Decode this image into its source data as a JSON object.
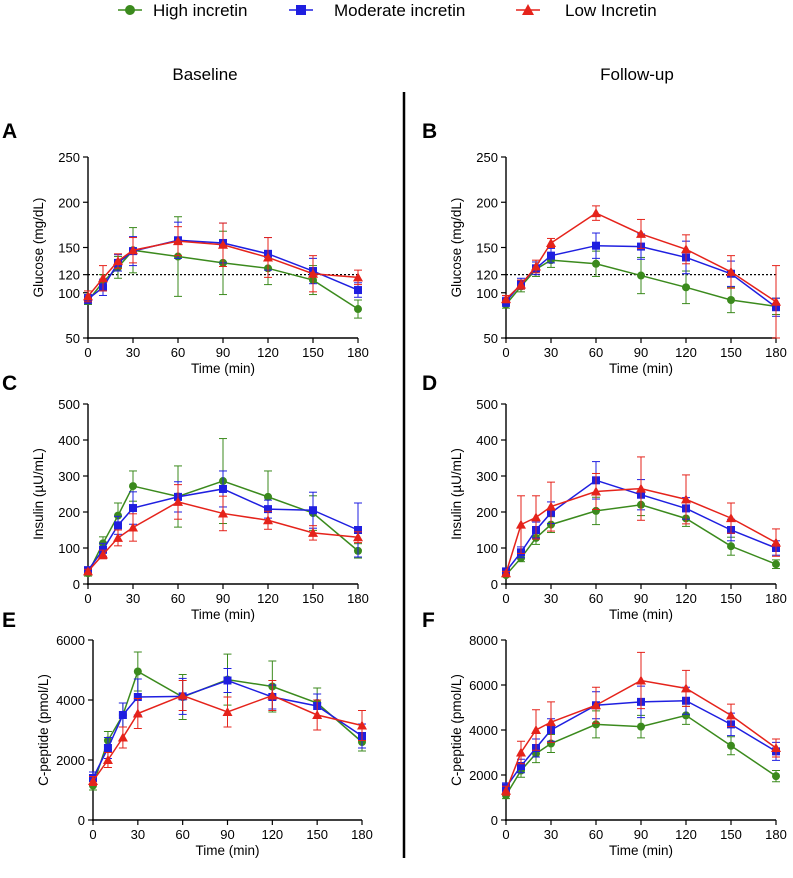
{
  "legend": [
    {
      "name": "High incretin",
      "color": "#3b8a1d",
      "marker": "circle"
    },
    {
      "name": "Moderate incretin",
      "color": "#1f1fe0",
      "marker": "square"
    },
    {
      "name": "Low Incretin",
      "color": "#e5231b",
      "marker": "triangle"
    }
  ],
  "column_titles": {
    "left": "Baseline",
    "right": "Follow-up"
  },
  "chart_data": [
    {
      "panel": "A",
      "type": "line",
      "title": "",
      "xlabel": "Time (min)",
      "ylabel": "Glucose (mg/dL)",
      "xlim": [
        0,
        180
      ],
      "ylim": [
        50,
        250
      ],
      "xticks": [
        0,
        30,
        60,
        90,
        120,
        150,
        180
      ],
      "yticks": [
        50,
        100,
        120,
        150,
        200,
        250
      ],
      "ref_line": 120,
      "x": [
        0,
        10,
        20,
        30,
        60,
        90,
        120,
        150,
        180
      ],
      "series": [
        {
          "name": "High incretin",
          "values": [
            91,
            112,
            128,
            147,
            140,
            133,
            127,
            114,
            82
          ],
          "errors": [
            4,
            8,
            12,
            25,
            44,
            35,
            18,
            16,
            10
          ]
        },
        {
          "name": "Moderate incretin",
          "values": [
            93,
            106,
            133,
            146,
            158,
            155,
            143,
            124,
            103
          ],
          "errors": [
            5,
            9,
            9,
            16,
            20,
            22,
            18,
            14,
            8
          ]
        },
        {
          "name": "Low Incretin",
          "values": [
            96,
            116,
            135,
            147,
            157,
            153,
            139,
            121,
            117
          ],
          "errors": [
            6,
            14,
            8,
            14,
            16,
            24,
            22,
            20,
            8
          ]
        }
      ]
    },
    {
      "panel": "B",
      "type": "line",
      "title": "",
      "xlabel": "Time (min)",
      "ylabel": "Glucose (mg/dL)",
      "xlim": [
        0,
        180
      ],
      "ylim": [
        50,
        250
      ],
      "xticks": [
        0,
        30,
        60,
        90,
        120,
        150,
        180
      ],
      "yticks": [
        50,
        100,
        120,
        150,
        200,
        250
      ],
      "ref_line": 120,
      "x": [
        0,
        10,
        20,
        30,
        60,
        90,
        120,
        150,
        180
      ],
      "series": [
        {
          "name": "High incretin",
          "values": [
            87,
            107,
            126,
            136,
            132,
            119,
            106,
            92,
            85
          ],
          "errors": [
            4,
            6,
            8,
            8,
            14,
            20,
            18,
            14,
            9
          ]
        },
        {
          "name": "Moderate incretin",
          "values": [
            90,
            110,
            127,
            141,
            152,
            151,
            139,
            121,
            84
          ],
          "errors": [
            5,
            6,
            7,
            8,
            14,
            14,
            18,
            14,
            10
          ]
        },
        {
          "name": "Low Incretin",
          "values": [
            93,
            109,
            129,
            155,
            188,
            165,
            148,
            123,
            90
          ],
          "errors": [
            4,
            5,
            7,
            5,
            8,
            16,
            16,
            18,
            40
          ]
        }
      ]
    },
    {
      "panel": "C",
      "type": "line",
      "title": "",
      "xlabel": "Time (min)",
      "ylabel": "Insulin (µU/mL)",
      "xlim": [
        0,
        180
      ],
      "ylim": [
        0,
        500
      ],
      "xticks": [
        0,
        30,
        60,
        90,
        120,
        150,
        180
      ],
      "yticks": [
        0,
        100,
        200,
        300,
        400,
        500
      ],
      "x": [
        0,
        10,
        20,
        30,
        60,
        90,
        120,
        150,
        180
      ],
      "series": [
        {
          "name": "High incretin",
          "values": [
            30,
            113,
            190,
            272,
            243,
            286,
            242,
            197,
            92
          ],
          "errors": [
            8,
            18,
            35,
            42,
            85,
            118,
            72,
            48,
            20
          ]
        },
        {
          "name": "Moderate incretin",
          "values": [
            38,
            95,
            163,
            211,
            242,
            264,
            208,
            205,
            150
          ],
          "errors": [
            10,
            18,
            25,
            45,
            42,
            50,
            25,
            50,
            75
          ]
        },
        {
          "name": "Low Incretin",
          "values": [
            35,
            82,
            128,
            157,
            228,
            196,
            177,
            142,
            130
          ],
          "errors": [
            6,
            12,
            22,
            38,
            48,
            48,
            25,
            20,
            15
          ]
        }
      ]
    },
    {
      "panel": "D",
      "type": "line",
      "title": "",
      "xlabel": "Time (min)",
      "ylabel": "Insulin (µU/mL)",
      "xlim": [
        0,
        180
      ],
      "ylim": [
        0,
        500
      ],
      "xticks": [
        0,
        30,
        60,
        90,
        120,
        150,
        180
      ],
      "yticks": [
        0,
        100,
        200,
        300,
        400,
        500
      ],
      "x": [
        0,
        10,
        20,
        30,
        60,
        90,
        120,
        150,
        180
      ],
      "series": [
        {
          "name": "High incretin",
          "values": [
            25,
            72,
            128,
            165,
            203,
            220,
            182,
            105,
            55
          ],
          "errors": [
            5,
            10,
            18,
            22,
            38,
            30,
            22,
            25,
            12
          ]
        },
        {
          "name": "Moderate incretin",
          "values": [
            35,
            88,
            150,
            198,
            288,
            248,
            210,
            150,
            100
          ],
          "errors": [
            8,
            15,
            22,
            30,
            52,
            42,
            30,
            30,
            20
          ]
        },
        {
          "name": "Low Incretin",
          "values": [
            30,
            165,
            185,
            215,
            257,
            265,
            235,
            183,
            115
          ],
          "errors": [
            5,
            80,
            60,
            68,
            50,
            88,
            68,
            42,
            38
          ]
        }
      ]
    },
    {
      "panel": "E",
      "type": "line",
      "title": "",
      "xlabel": "Time (min)",
      "ylabel": "C-peptide (pmol/L)",
      "xlim": [
        0,
        180
      ],
      "ylim": [
        0,
        6000
      ],
      "xticks": [
        0,
        30,
        60,
        90,
        120,
        150,
        180
      ],
      "yticks": [
        0,
        2000,
        4000,
        6000
      ],
      "x": [
        0,
        10,
        20,
        30,
        60,
        90,
        120,
        150,
        180
      ],
      "series": [
        {
          "name": "High incretin",
          "values": [
            1150,
            2650,
            3500,
            4950,
            4100,
            4680,
            4450,
            3900,
            2600
          ],
          "errors": [
            150,
            300,
            400,
            650,
            750,
            850,
            850,
            500,
            300
          ]
        },
        {
          "name": "Moderate incretin",
          "values": [
            1400,
            2400,
            3500,
            4100,
            4120,
            4650,
            4100,
            3800,
            2800
          ],
          "errors": [
            200,
            350,
            400,
            600,
            600,
            400,
            400,
            400,
            400
          ]
        },
        {
          "name": "Low Incretin",
          "values": [
            1300,
            2000,
            2750,
            3550,
            4150,
            3600,
            4150,
            3500,
            3150
          ],
          "errors": [
            150,
            250,
            350,
            500,
            500,
            500,
            500,
            500,
            500
          ]
        }
      ]
    },
    {
      "panel": "F",
      "type": "line",
      "title": "",
      "xlabel": "Time (min)",
      "ylabel": "C-peptide (pmol/L)",
      "xlim": [
        0,
        180
      ],
      "ylim": [
        0,
        8000
      ],
      "xticks": [
        0,
        30,
        60,
        90,
        120,
        150,
        180
      ],
      "yticks": [
        0,
        2000,
        4000,
        6000,
        8000
      ],
      "x": [
        0,
        10,
        20,
        30,
        60,
        90,
        120,
        150,
        180
      ],
      "series": [
        {
          "name": "High incretin",
          "values": [
            1100,
            2200,
            2950,
            3400,
            4250,
            4150,
            4650,
            3300,
            1950
          ],
          "errors": [
            150,
            300,
            400,
            400,
            600,
            500,
            400,
            400,
            250
          ]
        },
        {
          "name": "Moderate incretin",
          "values": [
            1450,
            2400,
            3200,
            4000,
            5100,
            5250,
            5300,
            4250,
            3050
          ],
          "errors": [
            200,
            300,
            400,
            500,
            600,
            700,
            600,
            500,
            400
          ]
        },
        {
          "name": "Low Incretin",
          "values": [
            1300,
            3000,
            4000,
            4350,
            5100,
            6200,
            5850,
            4650,
            3200
          ],
          "errors": [
            200,
            500,
            900,
            900,
            800,
            1250,
            800,
            500,
            400
          ]
        }
      ]
    }
  ]
}
